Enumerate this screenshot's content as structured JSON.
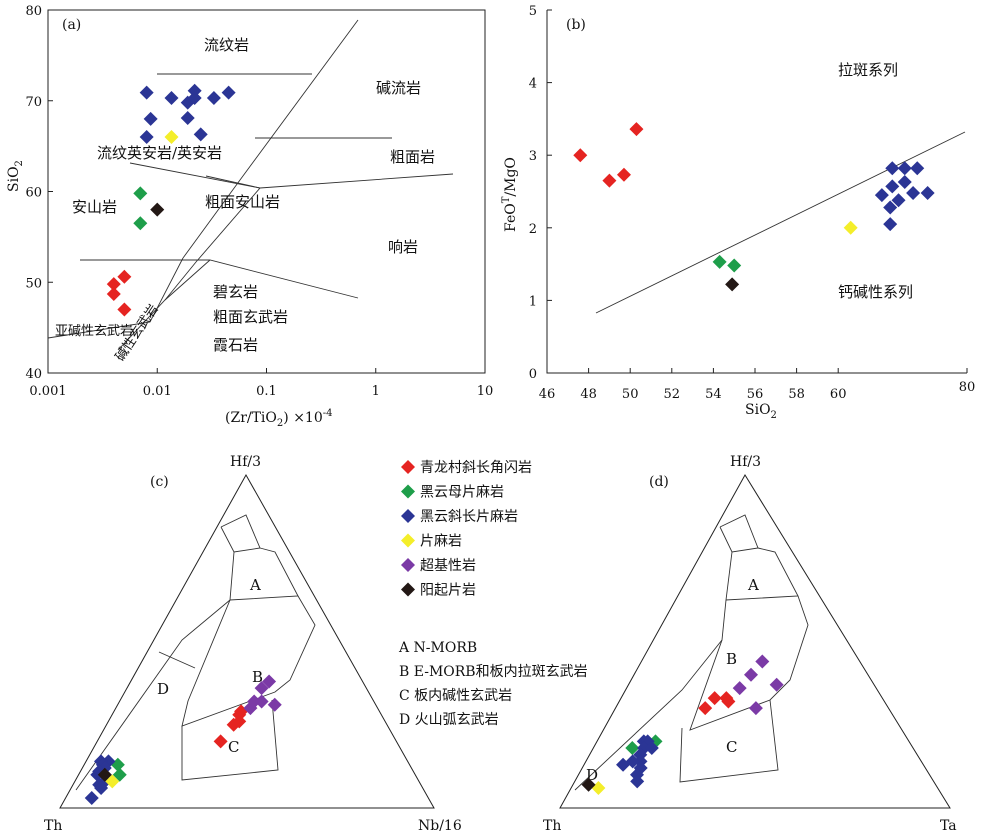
{
  "colors": {
    "red": "#e52421",
    "green": "#1e9e4a",
    "blue": "#2b3595",
    "yellow": "#f4ee2a",
    "purple": "#7b3aa6",
    "black": "#231815"
  },
  "legend": {
    "items": [
      {
        "label": "青龙村斜长角闪岩",
        "color": "red"
      },
      {
        "label": "黑云母片麻岩",
        "color": "green"
      },
      {
        "label": "黑云斜长片麻岩",
        "color": "blue"
      },
      {
        "label": "片麻岩",
        "color": "yellow"
      },
      {
        "label": "超基性岩",
        "color": "purple"
      },
      {
        "label": "阳起片岩",
        "color": "black"
      }
    ],
    "fields": [
      "A  N-MORB",
      "B  E-MORB和板内拉斑玄武岩",
      "C  板内碱性玄武岩",
      "D  火山弧玄武岩"
    ]
  },
  "chart_data": [
    {
      "panel": "(a)",
      "type": "scatter",
      "xlabel": "(Zr/TiO",
      "xlabel_sub": "2",
      "xlabel_tail": ") ×10",
      "xlabel_sup": "-4",
      "ylabel": "SiO",
      "ylabel_sub": "2",
      "xscale": "log",
      "xlim": [
        0.001,
        10
      ],
      "ylim": [
        40,
        80
      ],
      "xticks": [
        "0.001",
        "0.01",
        "0.1",
        "1",
        "10"
      ],
      "yticks": [
        "40",
        "50",
        "60",
        "70",
        "80"
      ],
      "fields": [
        "流纹岩",
        "碱流岩",
        "流纹英安岩/英安岩",
        "粗面岩",
        "安山岩",
        "粗面安山岩",
        "响岩",
        "碧玄岩",
        "粗面玄武岩",
        "霞石岩",
        "亚碱性玄武岩",
        "碱性玄武岩"
      ],
      "points": [
        {
          "x": 0.004,
          "y": 49.8,
          "c": "red"
        },
        {
          "x": 0.004,
          "y": 48.7,
          "c": "red"
        },
        {
          "x": 0.005,
          "y": 50.6,
          "c": "red"
        },
        {
          "x": 0.005,
          "y": 47.0,
          "c": "red"
        },
        {
          "x": 0.007,
          "y": 59.8,
          "c": "green"
        },
        {
          "x": 0.007,
          "y": 56.5,
          "c": "green"
        },
        {
          "x": 0.008,
          "y": 70.9,
          "c": "blue"
        },
        {
          "x": 0.0087,
          "y": 68.0,
          "c": "blue"
        },
        {
          "x": 0.008,
          "y": 66.0,
          "c": "blue"
        },
        {
          "x": 0.0135,
          "y": 70.3,
          "c": "blue"
        },
        {
          "x": 0.019,
          "y": 69.8,
          "c": "blue"
        },
        {
          "x": 0.022,
          "y": 71.1,
          "c": "blue"
        },
        {
          "x": 0.022,
          "y": 70.3,
          "c": "blue"
        },
        {
          "x": 0.019,
          "y": 68.1,
          "c": "blue"
        },
        {
          "x": 0.025,
          "y": 66.3,
          "c": "blue"
        },
        {
          "x": 0.033,
          "y": 70.3,
          "c": "blue"
        },
        {
          "x": 0.045,
          "y": 70.9,
          "c": "blue"
        },
        {
          "x": 0.0135,
          "y": 66.0,
          "c": "yellow"
        },
        {
          "x": 0.01,
          "y": 58.0,
          "c": "black"
        }
      ]
    },
    {
      "panel": "(b)",
      "type": "scatter",
      "xlabel": "SiO",
      "xlabel_sub": "2",
      "ylabel": "FeO",
      "ylabel_sup": "T",
      "ylabel_tail": "/MgO",
      "xlim": [
        46,
        80
      ],
      "ylim": [
        0,
        5
      ],
      "xticks": [
        "46",
        "48",
        "50",
        "52",
        "54",
        "56",
        "58",
        "60",
        "80"
      ],
      "yticks": [
        "0",
        "1",
        "2",
        "3",
        "4",
        "5"
      ],
      "fields": [
        "拉斑系列",
        "钙碱性系列"
      ],
      "points": [
        {
          "x": 47.6,
          "y": 3.0,
          "c": "red"
        },
        {
          "x": 49.0,
          "y": 2.65,
          "c": "red"
        },
        {
          "x": 49.7,
          "y": 2.73,
          "c": "red"
        },
        {
          "x": 50.3,
          "y": 3.36,
          "c": "red"
        },
        {
          "x": 54.3,
          "y": 1.53,
          "c": "green"
        },
        {
          "x": 55.0,
          "y": 1.48,
          "c": "green"
        },
        {
          "x": 54.9,
          "y": 1.22,
          "c": "black"
        },
        {
          "x": 60.6,
          "y": 2.0,
          "c": "yellow"
        },
        {
          "x": 62.6,
          "y": 2.82,
          "c": "blue"
        },
        {
          "x": 63.2,
          "y": 2.82,
          "c": "blue"
        },
        {
          "x": 63.8,
          "y": 2.82,
          "c": "blue"
        },
        {
          "x": 63.2,
          "y": 2.63,
          "c": "blue"
        },
        {
          "x": 62.6,
          "y": 2.57,
          "c": "blue"
        },
        {
          "x": 62.1,
          "y": 2.45,
          "c": "blue"
        },
        {
          "x": 62.9,
          "y": 2.38,
          "c": "blue"
        },
        {
          "x": 63.6,
          "y": 2.48,
          "c": "blue"
        },
        {
          "x": 64.3,
          "y": 2.48,
          "c": "blue"
        },
        {
          "x": 62.5,
          "y": 2.28,
          "c": "blue"
        },
        {
          "x": 62.5,
          "y": 2.05,
          "c": "blue"
        }
      ]
    },
    {
      "panel": "(c)",
      "type": "scatter",
      "vertices": {
        "top": "Hf/3",
        "left": "Th",
        "right": "Nb/16"
      },
      "fields": [
        "A",
        "B",
        "C",
        "D"
      ],
      "points": [
        {
          "top": 0.2,
          "left": 0.47,
          "right": 0.33,
          "c": "red"
        },
        {
          "top": 0.25,
          "left": 0.41,
          "right": 0.34,
          "c": "red"
        },
        {
          "top": 0.26,
          "left": 0.39,
          "right": 0.35,
          "c": "red"
        },
        {
          "top": 0.28,
          "left": 0.38,
          "right": 0.34,
          "c": "red"
        },
        {
          "top": 0.29,
          "left": 0.37,
          "right": 0.34,
          "c": "red"
        },
        {
          "top": 0.3,
          "left": 0.34,
          "right": 0.36,
          "c": "purple"
        },
        {
          "top": 0.32,
          "left": 0.32,
          "right": 0.36,
          "c": "purple"
        },
        {
          "top": 0.32,
          "left": 0.3,
          "right": 0.38,
          "c": "purple"
        },
        {
          "top": 0.36,
          "left": 0.28,
          "right": 0.36,
          "c": "purple"
        },
        {
          "top": 0.38,
          "left": 0.25,
          "right": 0.37,
          "c": "purple"
        },
        {
          "top": 0.31,
          "left": 0.27,
          "right": 0.42,
          "c": "purple"
        },
        {
          "top": 0.13,
          "left": 0.78,
          "right": 0.09,
          "c": "green"
        },
        {
          "top": 0.1,
          "left": 0.79,
          "right": 0.11,
          "c": "green"
        },
        {
          "top": 0.14,
          "left": 0.8,
          "right": 0.06,
          "c": "blue"
        },
        {
          "top": 0.14,
          "left": 0.82,
          "right": 0.04,
          "c": "blue"
        },
        {
          "top": 0.13,
          "left": 0.82,
          "right": 0.05,
          "c": "blue"
        },
        {
          "top": 0.12,
          "left": 0.82,
          "right": 0.06,
          "c": "blue"
        },
        {
          "top": 0.11,
          "left": 0.84,
          "right": 0.05,
          "c": "blue"
        },
        {
          "top": 0.1,
          "left": 0.85,
          "right": 0.05,
          "c": "blue"
        },
        {
          "top": 0.1,
          "left": 0.83,
          "right": 0.07,
          "c": "blue"
        },
        {
          "top": 0.08,
          "left": 0.84,
          "right": 0.08,
          "c": "blue"
        },
        {
          "top": 0.07,
          "left": 0.86,
          "right": 0.07,
          "c": "blue"
        },
        {
          "top": 0.06,
          "left": 0.86,
          "right": 0.08,
          "c": "blue"
        },
        {
          "top": 0.03,
          "left": 0.9,
          "right": 0.07,
          "c": "blue"
        },
        {
          "top": 0.08,
          "left": 0.82,
          "right": 0.1,
          "c": "yellow"
        },
        {
          "top": 0.1,
          "left": 0.83,
          "right": 0.07,
          "c": "black"
        }
      ]
    },
    {
      "panel": "(d)",
      "type": "scatter",
      "vertices": {
        "top": "Hf/3",
        "left": "Th",
        "right": "Ta"
      },
      "fields": [
        "A",
        "B",
        "C",
        "D"
      ],
      "points": [
        {
          "top": 0.3,
          "left": 0.47,
          "right": 0.23,
          "c": "red"
        },
        {
          "top": 0.33,
          "left": 0.43,
          "right": 0.24,
          "c": "red"
        },
        {
          "top": 0.33,
          "left": 0.4,
          "right": 0.27,
          "c": "red"
        },
        {
          "top": 0.32,
          "left": 0.4,
          "right": 0.28,
          "c": "red"
        },
        {
          "top": 0.36,
          "left": 0.35,
          "right": 0.29,
          "c": "purple"
        },
        {
          "top": 0.4,
          "left": 0.3,
          "right": 0.3,
          "c": "purple"
        },
        {
          "top": 0.44,
          "left": 0.25,
          "right": 0.31,
          "c": "purple"
        },
        {
          "top": 0.37,
          "left": 0.25,
          "right": 0.38,
          "c": "purple"
        },
        {
          "top": 0.3,
          "left": 0.34,
          "right": 0.36,
          "c": "purple"
        },
        {
          "top": 0.2,
          "left": 0.65,
          "right": 0.15,
          "c": "green"
        },
        {
          "top": 0.18,
          "left": 0.72,
          "right": 0.1,
          "c": "green"
        },
        {
          "top": 0.2,
          "left": 0.68,
          "right": 0.12,
          "c": "blue"
        },
        {
          "top": 0.2,
          "left": 0.67,
          "right": 0.13,
          "c": "blue"
        },
        {
          "top": 0.18,
          "left": 0.69,
          "right": 0.13,
          "c": "blue"
        },
        {
          "top": 0.18,
          "left": 0.67,
          "right": 0.15,
          "c": "blue"
        },
        {
          "top": 0.16,
          "left": 0.71,
          "right": 0.13,
          "c": "blue"
        },
        {
          "top": 0.14,
          "left": 0.72,
          "right": 0.14,
          "c": "blue"
        },
        {
          "top": 0.14,
          "left": 0.74,
          "right": 0.12,
          "c": "blue"
        },
        {
          "top": 0.12,
          "left": 0.73,
          "right": 0.15,
          "c": "blue"
        },
        {
          "top": 0.1,
          "left": 0.75,
          "right": 0.15,
          "c": "blue"
        },
        {
          "top": 0.08,
          "left": 0.76,
          "right": 0.16,
          "c": "blue"
        },
        {
          "top": 0.13,
          "left": 0.77,
          "right": 0.1,
          "c": "blue"
        },
        {
          "top": 0.06,
          "left": 0.87,
          "right": 0.07,
          "c": "yellow"
        },
        {
          "top": 0.07,
          "left": 0.89,
          "right": 0.04,
          "c": "black"
        }
      ]
    }
  ]
}
